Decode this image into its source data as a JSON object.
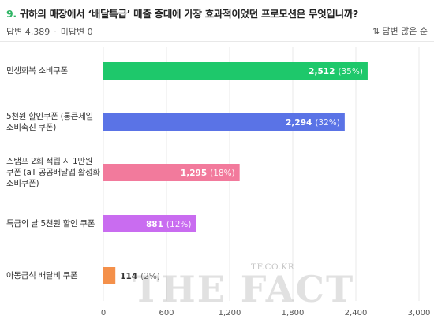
{
  "question": {
    "number": "9.",
    "text": "귀하의 매장에서 ‘배달특급’ 매출 증대에 가장 효과적이었던 프로모션은 무엇입니까?"
  },
  "meta": {
    "answers": "답변 4,389",
    "no_answers": "미답변 0",
    "sort_label": "답변 많은 순",
    "sort_icon": "sort-arrows-icon"
  },
  "watermark": {
    "small": "TF.CO.KR",
    "big": "THE FACT"
  },
  "chart_data": {
    "type": "bar",
    "orientation": "horizontal",
    "categories": [
      [
        "민생회복 소비쿠폰"
      ],
      [
        "5천원 할인쿠폰 (통큰세일",
        "소비촉진 쿠폰)"
      ],
      [
        "스탬프 2회 적립 시 1만원",
        "쿠폰 (aT 공공배달앱 활성화",
        "소비쿠폰)"
      ],
      [
        "특급의 날 5천원 할인 쿠폰"
      ],
      [
        "아동급식 배달비 쿠폰"
      ]
    ],
    "values": [
      2512,
      2294,
      1295,
      881,
      114
    ],
    "value_labels": [
      "2,512",
      "2,294",
      "1,295",
      "881",
      "114"
    ],
    "percent_labels": [
      "(35%)",
      "(32%)",
      "(18%)",
      "(12%)",
      "(2%)"
    ],
    "colors": [
      "#1ec86b",
      "#5a73e6",
      "#f27a9c",
      "#c96cf0",
      "#f4904a"
    ],
    "xlim": [
      0,
      3000
    ],
    "xticks": [
      0,
      600,
      1200,
      1800,
      2400,
      3000
    ],
    "xtick_labels": [
      "0",
      "600",
      "1,200",
      "1,800",
      "2,400",
      "3,000"
    ],
    "grid": true
  }
}
